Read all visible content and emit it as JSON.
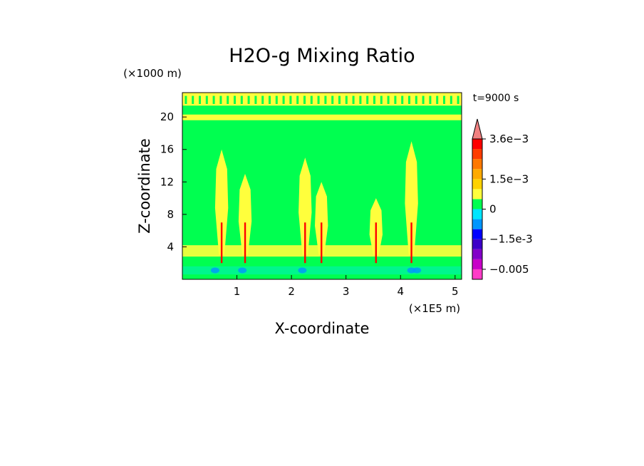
{
  "chart_data": {
    "type": "heatmap",
    "title": "H2O-g Mixing Ratio",
    "xlabel": "X-coordinate",
    "ylabel": "Z-coordinate",
    "x_unit": "(×1E5 m)",
    "y_unit": "(×1000 m)",
    "time_label": "t=9000 s",
    "xlim": [
      0,
      5.12
    ],
    "ylim": [
      0,
      23
    ],
    "x_ticks": [
      1,
      2,
      3,
      4,
      5
    ],
    "y_ticks": [
      4,
      8,
      12,
      16,
      20
    ],
    "colorbar": {
      "levels": [
        -0.008,
        -0.005,
        -0.0035,
        -0.0025,
        -0.0015,
        -0.001,
        -0.0005,
        0,
        0.0005,
        0.001,
        0.0015,
        0.002,
        0.0025,
        0.003,
        0.0036
      ],
      "colors": [
        "#ff3cc8",
        "#c800c8",
        "#8200c8",
        "#3c00c8",
        "#0000ff",
        "#0096ff",
        "#00e6ff",
        "#00ff50",
        "#ffff3c",
        "#ffd200",
        "#ffaa00",
        "#ff7800",
        "#ff3c00",
        "#ff0000",
        "#f08080"
      ],
      "tick_labels": [
        "3.6e-3",
        "1.5e-3",
        "0",
        "-1.5e-3",
        "-0.005"
      ]
    },
    "features": {
      "plumes_x": [
        0.72,
        1.15,
        2.25,
        2.55,
        3.55,
        4.2
      ],
      "plume_tops_km": [
        16,
        13,
        15,
        12,
        10,
        17
      ],
      "near_surface_blue_x": [
        0.6,
        1.1,
        2.2,
        4.2,
        4.3
      ],
      "band_heights_km": [
        3.5,
        20,
        22
      ]
    }
  }
}
